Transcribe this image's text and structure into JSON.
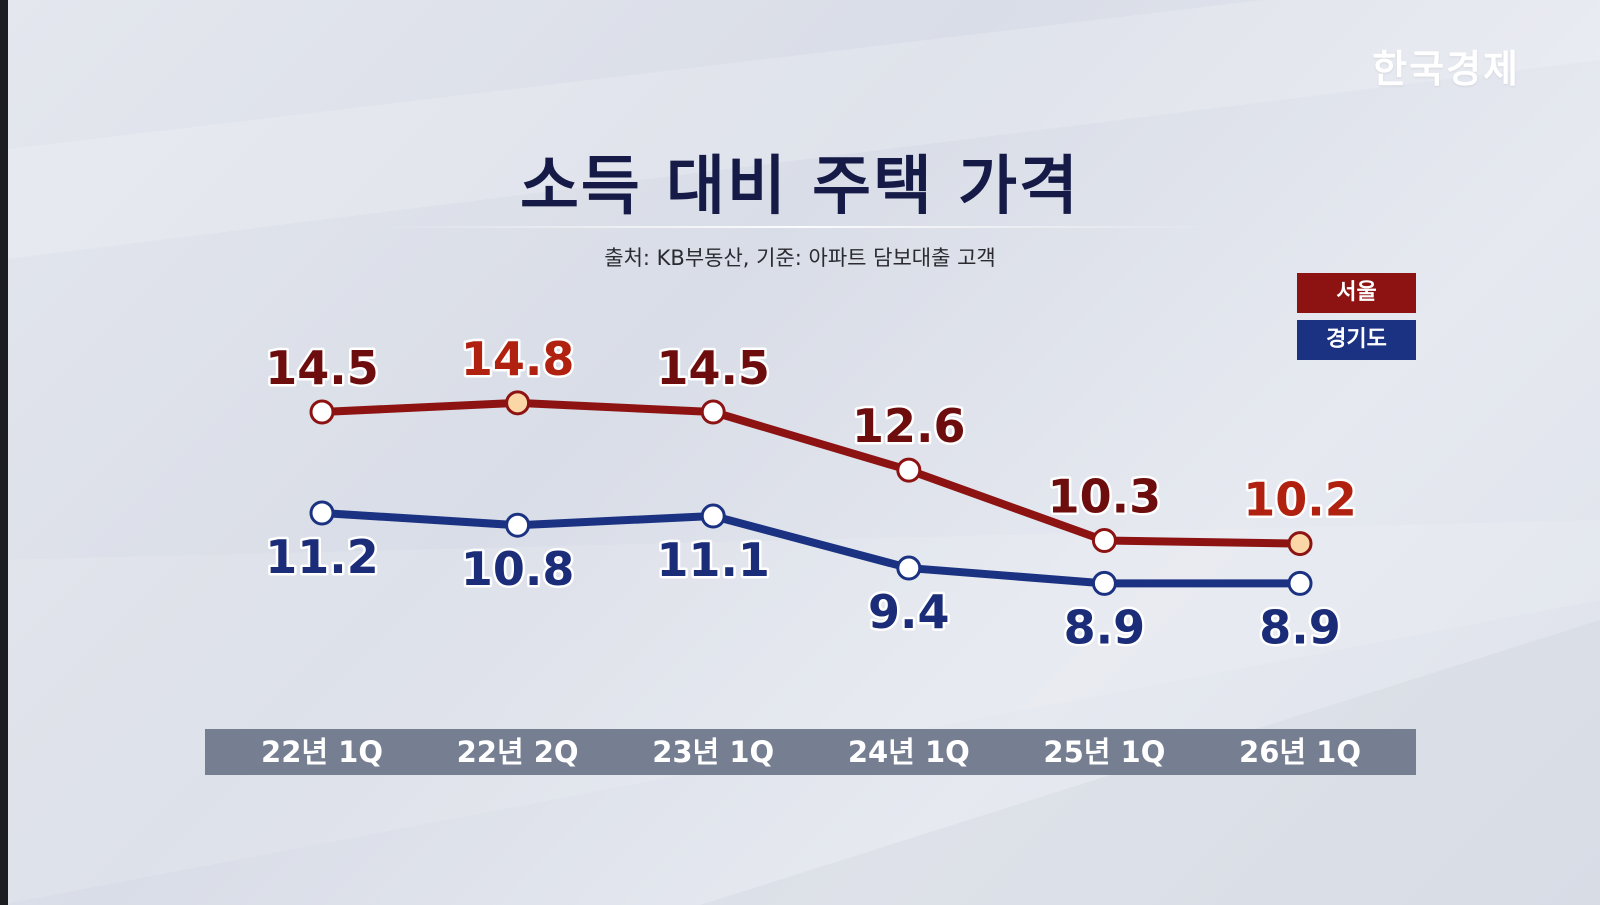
{
  "logo_text": "한국경제",
  "title": "소득 대비 주택 가격",
  "source_note": "출처: KB부동산, 기준: 아파트 담보대출 고객",
  "colors": {
    "seoul_line": "#8d1313",
    "seoul_label": "#6e0d0d",
    "seoul_highlight_label": "#b0220f",
    "seoul_highlight_point": "#fbd6a6",
    "gyeonggi_line": "#1b3282",
    "gyeonggi_label": "#1b2d78",
    "axis_bar": "#767e91",
    "title": "#151a47"
  },
  "chart_data": {
    "type": "line",
    "title": "소득 대비 주택 가격",
    "categories": [
      "22년 1Q",
      "22년 2Q",
      "23년 1Q",
      "24년 1Q",
      "25년 1Q",
      "26년 1Q"
    ],
    "series": [
      {
        "name": "서울",
        "values": [
          14.5,
          14.8,
          14.5,
          12.6,
          10.3,
          10.2
        ],
        "labels": [
          "14.5",
          "14.8",
          "14.5",
          "12.6",
          "10.3",
          "10.2"
        ],
        "highlighted": [
          false,
          true,
          false,
          false,
          false,
          true
        ]
      },
      {
        "name": "경기도",
        "values": [
          11.2,
          10.8,
          11.1,
          9.4,
          8.9,
          8.9
        ],
        "labels": [
          "11.2",
          "10.8",
          "11.1",
          "9.4",
          "8.9",
          "8.9"
        ]
      }
    ],
    "legend": [
      "서울",
      "경기도"
    ],
    "legend_position": "top-right",
    "grid": false
  }
}
